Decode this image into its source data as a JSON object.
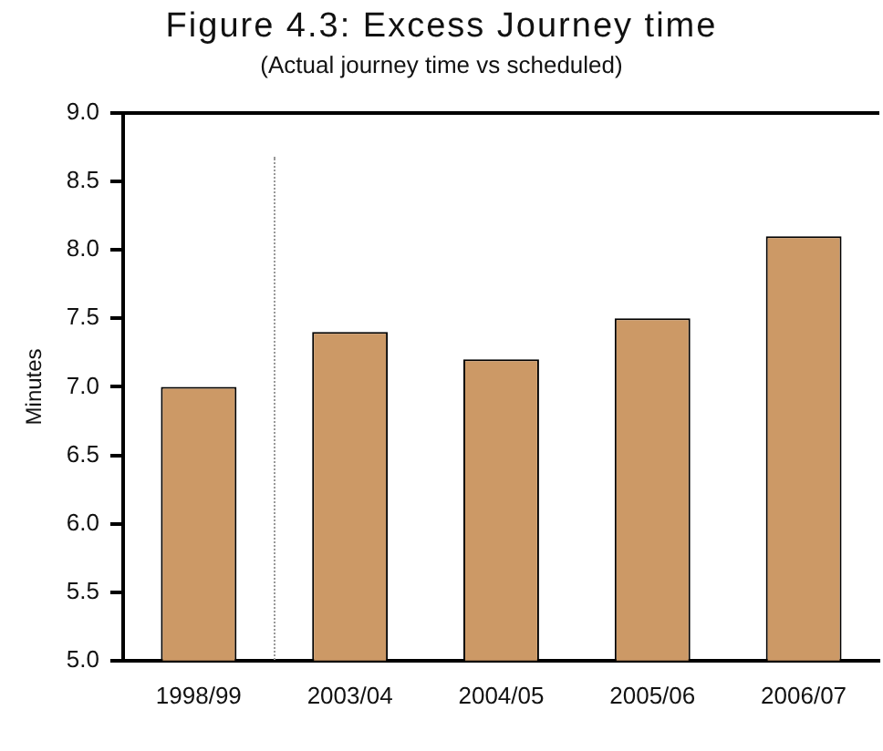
{
  "chart_data": {
    "type": "bar",
    "title": "Figure 4.3: Excess Journey time",
    "subtitle": "(Actual journey time vs scheduled)",
    "ylabel": "Minutes",
    "categories": [
      "1998/99",
      "2003/04",
      "2004/05",
      "2005/06",
      "2006/07"
    ],
    "values": [
      7.0,
      7.4,
      7.2,
      7.5,
      8.1
    ],
    "color": "#cc9966",
    "ylim": [
      5,
      9
    ],
    "yticks": [
      {
        "value": 5,
        "label": "5.0"
      },
      {
        "value": 5.5,
        "label": "5.5"
      },
      {
        "value": 6,
        "label": "6.0"
      },
      {
        "value": 6.5,
        "label": "6.5"
      },
      {
        "value": 7,
        "label": "7.0"
      },
      {
        "value": 7.5,
        "label": "7.5"
      },
      {
        "value": 8,
        "label": "8.0"
      },
      {
        "value": 8.5,
        "label": "8.5"
      },
      {
        "value": 9,
        "label": "9.0"
      }
    ],
    "grid": false,
    "legend": false
  }
}
